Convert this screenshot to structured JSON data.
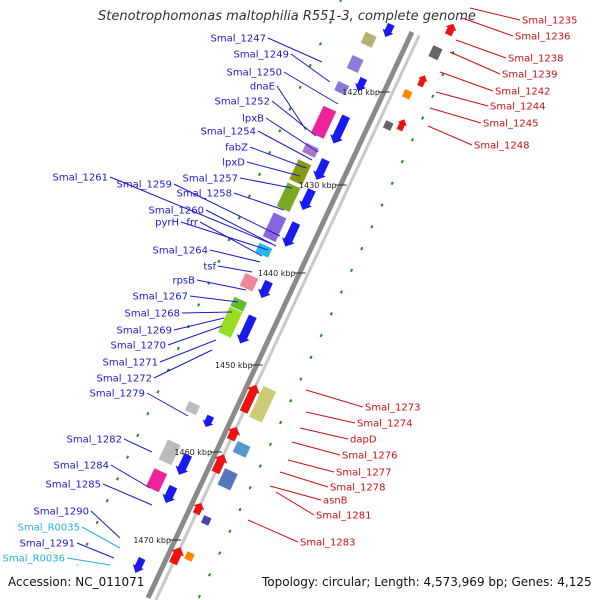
{
  "title": "Stenotrophomonas maltophilia R551-3, complete genome",
  "accession_label": "Accession: NC_011071",
  "topology_label": "Topology: circular; Length: 4,573,969 bp; Genes: 4,125",
  "colors": {
    "left_label": "#1a1acc",
    "right_label": "#cc1111",
    "rna_label": "#22b0e0",
    "backbone": "#8a8a8a",
    "forward_arrow": "#1a1aee",
    "reverse_arrow": "#ee1111",
    "tick": "#228822"
  },
  "kbp_markers": [
    "1420 kbp",
    "1430 kbp",
    "1440 kbp",
    "1450 kbp",
    "1460 kbp",
    "1470 kbp"
  ],
  "left_genes": [
    "Smal_1247",
    "Smal_1249",
    "Smal_1250",
    "dnaE",
    "Smal_1252",
    "lpxB",
    "Smal_1254",
    "fabZ",
    "lpxD",
    "Smal_1257",
    "Smal_1261",
    "Smal_1259",
    "Smal_1258",
    "Smal_1260",
    "pyrH",
    "frr",
    "Smal_1264",
    "tsf",
    "rpsB",
    "Smal_1267",
    "Smal_1268",
    "Smal_1269",
    "Smal_1270",
    "Smal_1271",
    "Smal_1272",
    "Smal_1279",
    "Smal_1282",
    "Smal_1284",
    "Smal_1285",
    "Smal_1290",
    "Smal_R0035",
    "Smal_1291",
    "Smal_R0036"
  ],
  "right_genes": [
    "Smal_1235",
    "Smal_1236",
    "Smal_1238",
    "Smal_1239",
    "Smal_1242",
    "Smal_1244",
    "Smal_1245",
    "Smal_1248",
    "Smal_1273",
    "Smal_1274",
    "dapD",
    "Smal_1276",
    "Smal_1277",
    "Smal_1278",
    "asnB",
    "Smal_1281",
    "Smal_1283"
  ]
}
